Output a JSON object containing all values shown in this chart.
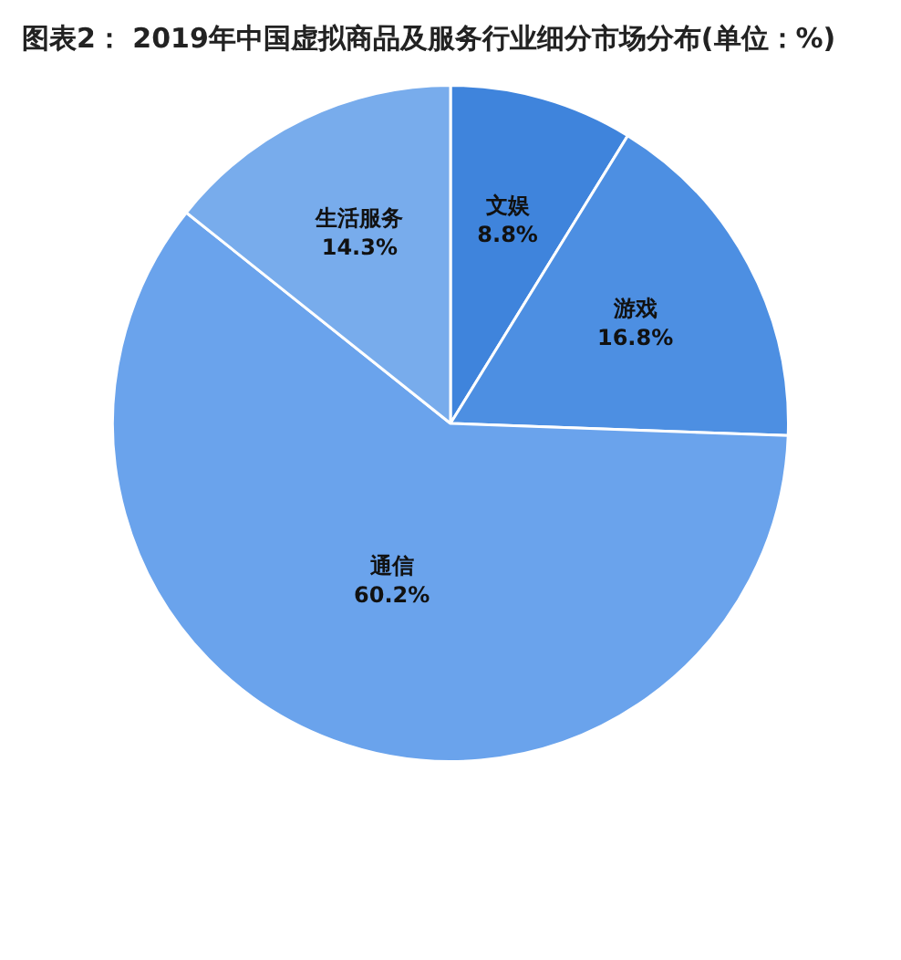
{
  "chart_data": {
    "type": "pie",
    "title": "图表2： 2019年中国虚拟商品及服务行业细分市场分布(单位：%)",
    "categories": [
      "文娱",
      "游戏",
      "通信",
      "生活服务"
    ],
    "values": [
      8.8,
      16.8,
      60.2,
      14.3
    ],
    "value_labels": [
      "8.8%",
      "16.8%",
      "60.2%",
      "14.3%"
    ],
    "colors": [
      "#3f84dc",
      "#4d8fe2",
      "#6aa3ec",
      "#78acec"
    ],
    "legend": false
  }
}
